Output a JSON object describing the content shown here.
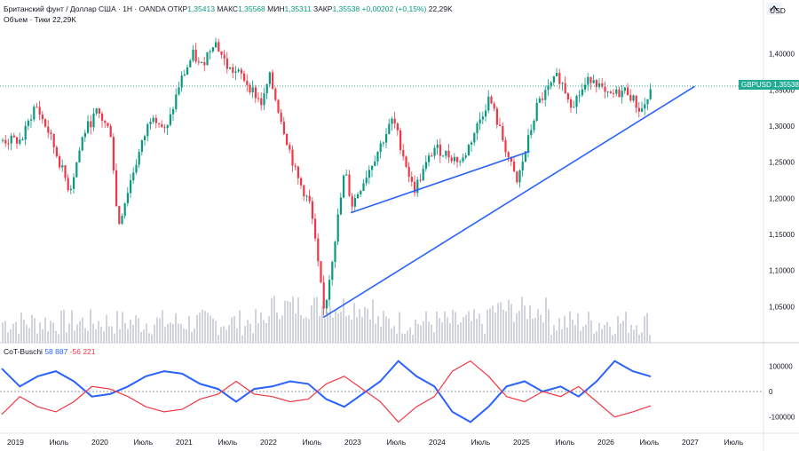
{
  "header": {
    "symbol_line": "Британский фунт / Доллар США · 1Н · OANDA",
    "open_label": "ОТКР",
    "open_value": "1,35413",
    "high_label": "МАКС",
    "high_value": "1,35568",
    "low_label": "МИН",
    "low_value": "1,35311",
    "close_label": "ЗАКР",
    "close_value": "1,35538",
    "change": "+0,00202 (+0,15%)",
    "volume_inline": "22,29K",
    "volume_line": "Объем · Тики   22,29K"
  },
  "price_axis": {
    "currency": "USD",
    "ticks": [
      "1,40000",
      "1,35000",
      "1,30000",
      "1,25000",
      "1,20000",
      "1,15000",
      "1,10000",
      "1,05000"
    ]
  },
  "price_badge": {
    "symbol": "GBPUSD",
    "value": "1,35538"
  },
  "indicator": {
    "name": "CoT-Buschi",
    "value_pos": "58 887",
    "value_neg": "-56 221",
    "ticks": [
      "100000",
      "0",
      "-100000"
    ]
  },
  "time_axis": [
    "2019",
    "Июль",
    "2020",
    "Июль",
    "2021",
    "Июль",
    "2022",
    "Июль",
    "2023",
    "Июль",
    "2024",
    "Июль",
    "2025",
    "Июль",
    "2026",
    "Июль",
    "2027",
    "Июль"
  ],
  "colors": {
    "up": "#089981",
    "down": "#f23645",
    "trendline": "#2962ff",
    "cot_pos": "#2962ff",
    "cot_neg": "#f23645",
    "volume": "#d1d4dc"
  },
  "chart_data": {
    "type": "candlestick",
    "ylim": [
      1.0,
      1.45
    ],
    "price_path": [
      [
        "2019-01",
        1.28
      ],
      [
        "2019-03",
        1.33
      ],
      [
        "2019-05",
        1.29
      ],
      [
        "2019-08",
        1.21
      ],
      [
        "2019-10",
        1.29
      ],
      [
        "2019-12",
        1.32
      ],
      [
        "2020-02",
        1.29
      ],
      [
        "2020-03",
        1.16
      ],
      [
        "2020-05",
        1.23
      ],
      [
        "2020-08",
        1.32
      ],
      [
        "2020-10",
        1.29
      ],
      [
        "2020-12",
        1.36
      ],
      [
        "2021-02",
        1.4
      ],
      [
        "2021-03",
        1.38
      ],
      [
        "2021-05",
        1.42
      ],
      [
        "2021-07",
        1.38
      ],
      [
        "2021-09",
        1.37
      ],
      [
        "2021-12",
        1.33
      ],
      [
        "2022-01",
        1.37
      ],
      [
        "2022-05",
        1.23
      ],
      [
        "2022-07",
        1.19
      ],
      [
        "2022-09",
        1.04
      ],
      [
        "2022-12",
        1.24
      ],
      [
        "2023-01",
        1.19
      ],
      [
        "2023-03",
        1.23
      ],
      [
        "2023-07",
        1.31
      ],
      [
        "2023-10",
        1.21
      ],
      [
        "2024-01",
        1.27
      ],
      [
        "2024-05",
        1.25
      ],
      [
        "2024-09",
        1.34
      ],
      [
        "2025-01",
        1.22
      ],
      [
        "2025-04",
        1.33
      ],
      [
        "2025-07",
        1.37
      ],
      [
        "2025-09",
        1.33
      ],
      [
        "2025-12",
        1.37
      ],
      [
        "2026-02",
        1.34
      ],
      [
        "2026-05",
        1.35
      ],
      [
        "2026-07",
        1.32
      ],
      [
        "2026-09",
        1.355
      ]
    ],
    "last_close": 1.35538,
    "trendlines": [
      {
        "from": [
          "2022-09",
          1.035
        ],
        "to": [
          "2027-03",
          1.355
        ]
      },
      {
        "from": [
          "2023-01",
          1.18
        ],
        "to": [
          "2025-03",
          1.265
        ]
      }
    ],
    "cot_series": [
      {
        "name": "58 887",
        "values": [
          90000,
          20000,
          60000,
          80000,
          40000,
          -20000,
          -10000,
          20000,
          60000,
          80000,
          70000,
          30000,
          10000,
          -40000,
          10000,
          20000,
          40000,
          30000,
          -30000,
          -60000,
          -10000,
          40000,
          120000,
          60000,
          20000,
          -80000,
          -120000,
          -60000,
          20000,
          40000,
          0,
          20000,
          -20000,
          40000,
          120000,
          80000,
          58887
        ]
      },
      {
        "name": "-56 221",
        "values": [
          -90000,
          -20000,
          -60000,
          -80000,
          -40000,
          20000,
          10000,
          -20000,
          -60000,
          -80000,
          -70000,
          -30000,
          -10000,
          40000,
          -10000,
          -20000,
          -40000,
          -30000,
          30000,
          60000,
          10000,
          -40000,
          -120000,
          -60000,
          -20000,
          80000,
          120000,
          60000,
          -20000,
          -40000,
          0,
          -20000,
          20000,
          -40000,
          -100000,
          -80000,
          -56221
        ]
      }
    ],
    "cot_ylim": [
      -150000,
      150000
    ]
  }
}
